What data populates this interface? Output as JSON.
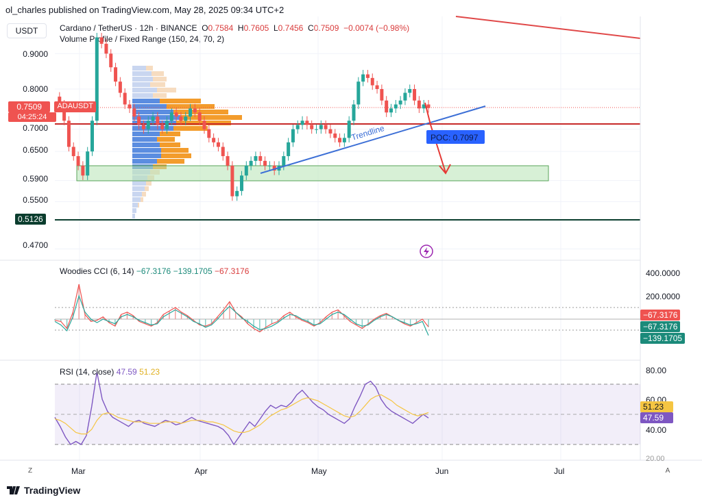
{
  "header": {
    "published": "ol_charles published on TradingView.com, May 28, 2025 09:34 UTC+2"
  },
  "currency": "USDT",
  "legend": {
    "title": "Cardano / TetherUS · 12h · BINANCE",
    "open_label": "O",
    "open": "0.7584",
    "high_label": "H",
    "high": "0.7605",
    "low_label": "L",
    "low": "0.7456",
    "close_label": "C",
    "close": "0.7509",
    "change": "−0.0074 (−0.98%)",
    "indicator": "Volume Profile / Fixed Range (150, 24, 70, 2)"
  },
  "price_tag": {
    "value": "0.7509",
    "countdown": "04:25:24",
    "symbol": "ADAUSDT"
  },
  "low_tag": "0.5126",
  "annotations": {
    "trendline": "Trendline",
    "poc": "POC: 0.7097"
  },
  "cci": {
    "title": "Woodies CCI (6, 14)",
    "v1": "−67.3176",
    "v2": "−139.1705",
    "v3": "−67.3176",
    "axis": [
      "400.0000",
      "200.0000"
    ],
    "tags": [
      "−67.3176",
      "−67.3176",
      "−139.1705"
    ]
  },
  "rsi": {
    "title": "RSI (14, close)",
    "v1": "47.59",
    "v2": "51.23",
    "axis": [
      "80.00",
      "60.00",
      "40.00",
      "20.00"
    ],
    "tags": [
      "51.23",
      "47.59"
    ]
  },
  "xaxis": {
    "labels": [
      "Mar",
      "Apr",
      "May",
      "Jun",
      "Jul"
    ],
    "left_btn": "Z",
    "right_btn": "A"
  },
  "brand": "TradingView",
  "colors": {
    "up": "#26a69a",
    "down": "#ef5350",
    "trend": "#3c6fd6",
    "support": "#c62828",
    "zone": "#b7e4b5",
    "rsi": "#7e57c2",
    "rsi_ma": "#f5c542",
    "poc": "#2962ff"
  },
  "chart_data": {
    "type": "line",
    "title": "Cardano / TetherUS · 12h · BINANCE",
    "price_axis": {
      "ticks": [
        "0.9000",
        "0.8000",
        "0.7000",
        "0.6500",
        "0.5900",
        "0.5500",
        "0.4700"
      ],
      "scale": "log"
    },
    "x_ticks": [
      "Mar",
      "Apr",
      "May",
      "Jun",
      "Jul"
    ],
    "series": [
      {
        "values": [
          0.78,
          0.76,
          0.72,
          0.66,
          0.64,
          0.62,
          0.6,
          0.65,
          0.72,
          0.95,
          0.93,
          0.9,
          0.86,
          0.82,
          0.79,
          0.76,
          0.75,
          0.73,
          0.71,
          0.7,
          0.72,
          0.73,
          0.71,
          0.7,
          0.72,
          0.74,
          0.73,
          0.72,
          0.73,
          0.75,
          0.74,
          0.72,
          0.7,
          0.68,
          0.67,
          0.66,
          0.64,
          0.62,
          0.56,
          0.57,
          0.6,
          0.62,
          0.63,
          0.64,
          0.63,
          0.62,
          0.62,
          0.61,
          0.62,
          0.64,
          0.67,
          0.7,
          0.71,
          0.72,
          0.71,
          0.7,
          0.7,
          0.71,
          0.7,
          0.69,
          0.68,
          0.67,
          0.68,
          0.72,
          0.76,
          0.82,
          0.84,
          0.83,
          0.81,
          0.8,
          0.77,
          0.74,
          0.75,
          0.76,
          0.77,
          0.79,
          0.8,
          0.77,
          0.75,
          0.76,
          0.7509
        ]
      }
    ],
    "levels": {
      "support": 0.709,
      "poc": 0.7097,
      "zone": [
        0.58,
        0.605
      ],
      "low": 0.5126
    },
    "cci": [
      {
        "values": [
          -10,
          -20,
          -80,
          60,
          300,
          40,
          -20,
          -10,
          20,
          -30,
          -60,
          40,
          60,
          30,
          -20,
          -40,
          -60,
          -30,
          40,
          70,
          100,
          60,
          30,
          -10,
          -50,
          -60,
          -40,
          20,
          80,
          150,
          60,
          20,
          -40,
          -80,
          -110,
          -70,
          -40,
          -20,
          30,
          60,
          20,
          -10,
          -30,
          -60,
          -30,
          20,
          60,
          80,
          30,
          -20,
          -50,
          -80,
          -40,
          0,
          30,
          50,
          20,
          -10,
          -40,
          -60,
          -30,
          0,
          -67.3176
        ]
      },
      {
        "values": [
          -20,
          -50,
          -100,
          20,
          200,
          60,
          0,
          -30,
          0,
          -20,
          -40,
          20,
          40,
          20,
          -10,
          -30,
          -50,
          -40,
          20,
          50,
          80,
          50,
          20,
          -20,
          -40,
          -70,
          -50,
          0,
          60,
          110,
          60,
          10,
          -20,
          -60,
          -90,
          -80,
          -60,
          -30,
          10,
          40,
          30,
          0,
          -20,
          -50,
          -40,
          0,
          40,
          60,
          40,
          0,
          -40,
          -60,
          -50,
          -10,
          20,
          40,
          20,
          -10,
          -30,
          -50,
          -40,
          -20,
          -139.1705
        ]
      }
    ],
    "rsi": [
      {
        "name": "RSI",
        "values": [
          48,
          42,
          35,
          30,
          32,
          30,
          36,
          55,
          78,
          60,
          52,
          48,
          46,
          44,
          42,
          45,
          46,
          44,
          43,
          42,
          44,
          46,
          45,
          43,
          44,
          46,
          48,
          46,
          45,
          44,
          43,
          42,
          40,
          36,
          30,
          35,
          40,
          45,
          42,
          47,
          52,
          56,
          54,
          56,
          55,
          58,
          63,
          66,
          62,
          58,
          55,
          53,
          50,
          48,
          46,
          44,
          47,
          55,
          62,
          70,
          72,
          68,
          60,
          55,
          52,
          50,
          48,
          46,
          44,
          47,
          50,
          47.59
        ]
      },
      {
        "name": "MA",
        "values": [
          47,
          46,
          44,
          41,
          38,
          37,
          37,
          40,
          46,
          50,
          51,
          50,
          48,
          47,
          46,
          45,
          45,
          45,
          44,
          44,
          44,
          45,
          45,
          45,
          44,
          45,
          46,
          46,
          46,
          45,
          45,
          44,
          43,
          41,
          39,
          38,
          38,
          39,
          41,
          43,
          46,
          49,
          51,
          53,
          54,
          56,
          58,
          60,
          61,
          60,
          59,
          57,
          55,
          53,
          51,
          49,
          48,
          49,
          52,
          56,
          60,
          62,
          63,
          61,
          59,
          56,
          54,
          52,
          50,
          49,
          50,
          51.23
        ]
      }
    ]
  }
}
